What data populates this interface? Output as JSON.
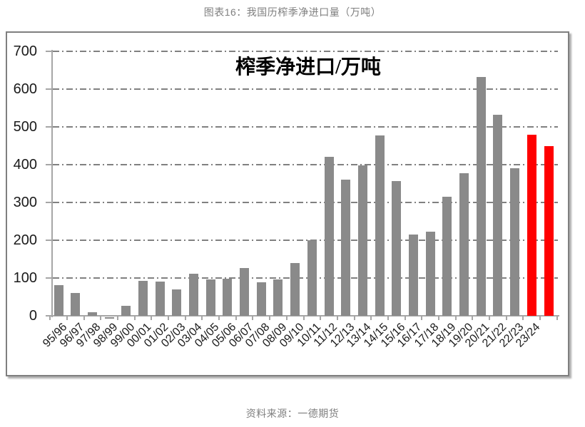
{
  "page": {
    "title": "图表16：我国历榨季净进口量（万吨）",
    "source_note": "资料来源：一德期货"
  },
  "chart_data": {
    "type": "bar",
    "title": "榨季净进口/万吨",
    "categories": [
      "95/96",
      "96/97",
      "97/98",
      "98/99",
      "99/00",
      "00/01",
      "01/02",
      "02/03",
      "03/04",
      "04/05",
      "05/06",
      "06/07",
      "07/08",
      "08/09",
      "09/10",
      "10/11",
      "11/12",
      "12/13",
      "13/14",
      "14/15",
      "15/16",
      "16/17",
      "17/18",
      "18/19",
      "19/20",
      "20/21",
      "21/22",
      "22/23",
      "23/24",
      ""
    ],
    "values": [
      81,
      61,
      10,
      -4,
      27,
      93,
      90,
      69,
      112,
      97,
      98,
      127,
      88,
      97,
      139,
      200,
      420,
      361,
      398,
      477,
      357,
      216,
      223,
      315,
      377,
      633,
      533,
      390,
      480,
      450
    ],
    "highlight_indexes": [
      28,
      29
    ],
    "xlabel": "",
    "ylabel": "",
    "ylim": [
      0,
      700
    ],
    "yticks": [
      0,
      100,
      200,
      300,
      400,
      500,
      600,
      700
    ],
    "grid": "horizontal dash-dot",
    "legend": "none",
    "colors": {
      "bar": "#8a8a8a",
      "bar_highlight": "#ff0000",
      "gridline": "#808080",
      "axis": "#a6a6a6",
      "tick_label": "#1a1a1a",
      "chart_title": "#000000",
      "page_title": "#7f7f7f",
      "source": "#7f7f7f"
    }
  }
}
